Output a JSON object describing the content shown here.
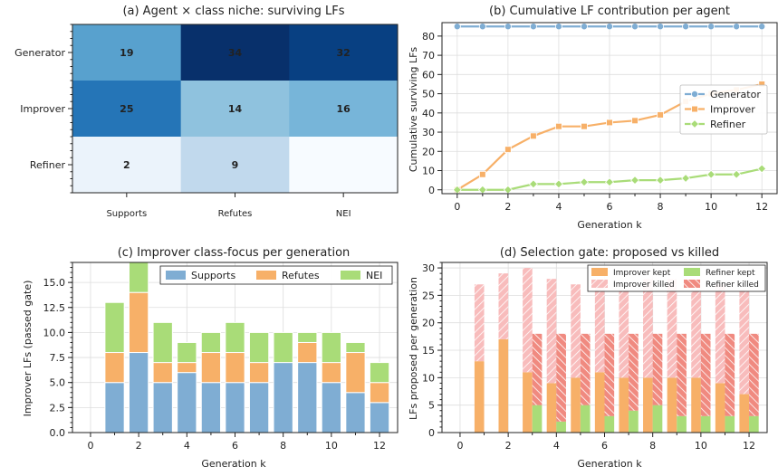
{
  "chart_data": [
    {
      "type": "heatmap",
      "title": "(a) Agent × class niche: surviving LFs",
      "rows": [
        "Generator",
        "Improver",
        "Refiner"
      ],
      "columns": [
        "Supports",
        "Refutes",
        "NEI"
      ],
      "values": [
        [
          19,
          34,
          32
        ],
        [
          25,
          14,
          16
        ],
        [
          2,
          9,
          null
        ]
      ],
      "colormap": "Blues"
    },
    {
      "type": "line",
      "title": "(b) Cumulative LF contribution per agent",
      "xlabel": "Generation k",
      "ylabel": "Cumulative surviving LFs",
      "x": [
        0,
        1,
        2,
        3,
        4,
        5,
        6,
        7,
        8,
        9,
        10,
        11,
        12
      ],
      "xticks": [
        "0",
        "2",
        "4",
        "6",
        "8",
        "10",
        "12"
      ],
      "yticks": [
        "0",
        "10",
        "20",
        "30",
        "40",
        "50",
        "60",
        "70",
        "80"
      ],
      "ylim": [
        -2,
        87
      ],
      "legend_position": "center-right",
      "grid": true,
      "series": [
        {
          "name": "Generator",
          "color": "#7fadd3",
          "marker": "circle",
          "values": [
            85,
            85,
            85,
            85,
            85,
            85,
            85,
            85,
            85,
            85,
            85,
            85,
            85
          ]
        },
        {
          "name": "Improver",
          "color": "#f7b068",
          "marker": "square",
          "values": [
            0,
            8,
            21,
            28,
            33,
            33,
            35,
            36,
            39,
            46,
            50,
            52,
            55
          ]
        },
        {
          "name": "Refiner",
          "color": "#a9dc78",
          "marker": "diamond",
          "values": [
            0,
            0,
            0,
            3,
            3,
            4,
            4,
            5,
            5,
            6,
            8,
            8,
            11
          ]
        }
      ]
    },
    {
      "type": "bar",
      "stacked": true,
      "title": "(c) Improver class-focus per generation",
      "xlabel": "Generation k",
      "ylabel": "Improver LFs (passed gate)",
      "x": [
        0,
        1,
        2,
        3,
        4,
        5,
        6,
        7,
        8,
        9,
        10,
        11,
        12
      ],
      "xticks": [
        "0",
        "2",
        "4",
        "6",
        "8",
        "10",
        "12"
      ],
      "yticks": [
        "0.0",
        "2.5",
        "5.0",
        "7.5",
        "10.0",
        "12.5",
        "15.0"
      ],
      "ylim": [
        0,
        17
      ],
      "legend_position": "top",
      "grid": true,
      "series": [
        {
          "name": "Supports",
          "color": "#7fadd3",
          "values": [
            0,
            5,
            8,
            5,
            6,
            5,
            5,
            5,
            7,
            7,
            5,
            4,
            3
          ]
        },
        {
          "name": "Refutes",
          "color": "#f7b068",
          "values": [
            0,
            3,
            6,
            2,
            1,
            3,
            3,
            2,
            0,
            2,
            2,
            4,
            2
          ]
        },
        {
          "name": "NEI",
          "color": "#a9dc78",
          "values": [
            0,
            5,
            3,
            4,
            2,
            2,
            3,
            3,
            3,
            1,
            3,
            1,
            2
          ]
        }
      ]
    },
    {
      "type": "bar",
      "title": "(d) Selection gate: proposed vs killed",
      "xlabel": "Generation k",
      "ylabel": "LFs proposed per generation",
      "x": [
        0,
        1,
        2,
        3,
        4,
        5,
        6,
        7,
        8,
        9,
        10,
        11,
        12
      ],
      "xticks": [
        "0",
        "2",
        "4",
        "6",
        "8",
        "10",
        "12"
      ],
      "yticks": [
        "0",
        "5",
        "10",
        "15",
        "20",
        "25",
        "30"
      ],
      "ylim": [
        0,
        31
      ],
      "legend_position": "top-right",
      "grid": true,
      "series": [
        {
          "name": "Improver kept",
          "color": "#f7b068",
          "values": [
            0,
            13,
            17,
            11,
            9,
            10,
            11,
            10,
            10,
            10,
            10,
            9,
            7
          ]
        },
        {
          "name": "Improver killed",
          "color": "#f8bcbc",
          "hatch": true,
          "values": [
            0,
            14,
            12,
            19,
            19,
            17,
            16,
            16,
            18,
            18,
            16,
            18,
            19
          ]
        },
        {
          "name": "Refiner kept",
          "color": "#a9dc78",
          "values": [
            0,
            0,
            0,
            5,
            2,
            5,
            3,
            4,
            5,
            3,
            3,
            3,
            3
          ]
        },
        {
          "name": "Refiner killed",
          "color": "#f08a80",
          "hatch": true,
          "values": [
            0,
            0,
            0,
            13,
            16,
            13,
            15,
            14,
            13,
            15,
            15,
            15,
            15
          ]
        }
      ]
    }
  ]
}
